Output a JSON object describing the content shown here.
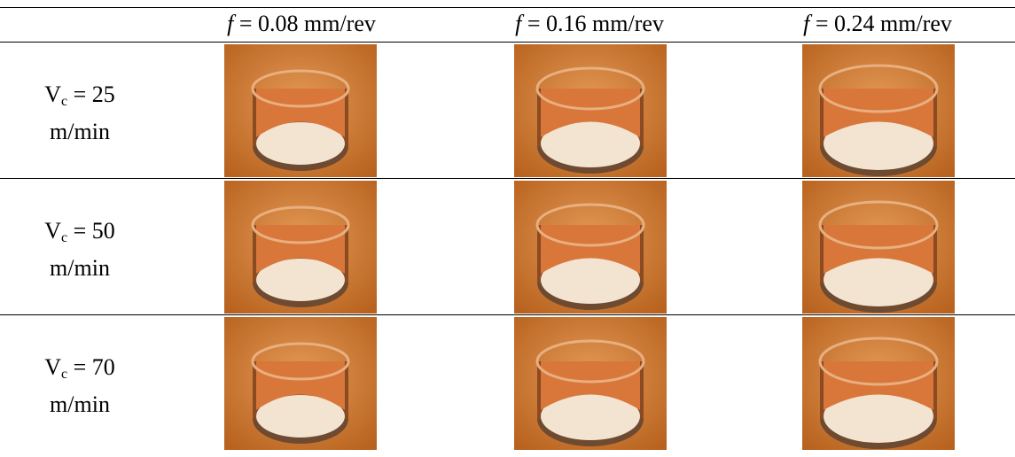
{
  "table": {
    "header": [
      {
        "symbol": "f",
        "text": "= 0.08 mm/rev"
      },
      {
        "symbol": "f",
        "text": "= 0.16 mm/rev"
      },
      {
        "symbol": "f",
        "text": "= 0.24 mm/rev"
      }
    ],
    "rows": [
      {
        "symbol": "V",
        "subscript": "c",
        "value": "= 25",
        "unit": "m/min"
      },
      {
        "symbol": "V",
        "subscript": "c",
        "value": "= 50",
        "unit": "m/min"
      },
      {
        "symbol": "V",
        "subscript": "c",
        "value": "= 70",
        "unit": "m/min"
      }
    ]
  }
}
